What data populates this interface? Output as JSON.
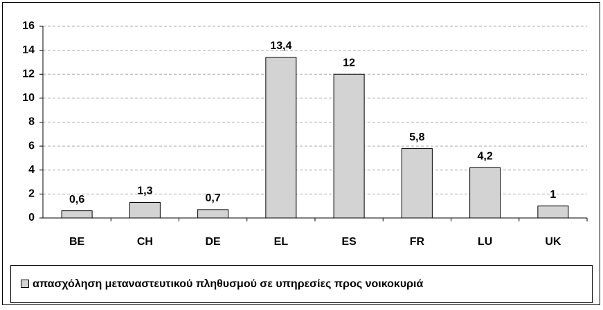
{
  "chart_data": {
    "type": "bar",
    "categories": [
      "BE",
      "CH",
      "DE",
      "EL",
      "ES",
      "FR",
      "LU",
      "UK"
    ],
    "series": [
      {
        "name": "απασχόληση μεταναστευτικού πληθυσμού σε υπηρεσίες προς νοικοκυριά",
        "color": "#d3d3d3",
        "values": [
          0.6,
          1.3,
          0.7,
          13.4,
          12,
          5.8,
          4.2,
          1
        ],
        "value_labels": [
          "0,6",
          "1,3",
          "0,7",
          "13,4",
          "12",
          "5,8",
          "4,2",
          "1"
        ]
      }
    ],
    "ylim": [
      0,
      16
    ],
    "yticks": [
      0,
      2,
      4,
      6,
      8,
      10,
      12,
      14,
      16
    ],
    "grid": true,
    "legend": "bottom"
  }
}
